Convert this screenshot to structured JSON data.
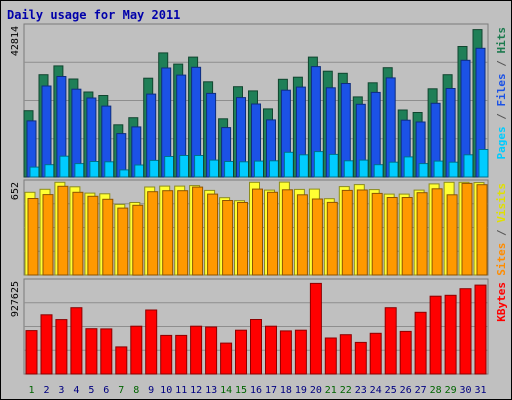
{
  "chart_data": {
    "type": "bar",
    "title": "Daily usage for May 2011",
    "categories": [
      "1",
      "2",
      "3",
      "4",
      "5",
      "6",
      "7",
      "8",
      "9",
      "10",
      "11",
      "12",
      "13",
      "14",
      "15",
      "16",
      "17",
      "18",
      "19",
      "20",
      "21",
      "22",
      "23",
      "24",
      "25",
      "26",
      "27",
      "28",
      "29",
      "30",
      "31"
    ],
    "weekend_days": [
      "1",
      "7",
      "8",
      "14",
      "15",
      "21",
      "22",
      "28",
      "29"
    ],
    "weekend_color": "#006400",
    "weekday_color": "#000080",
    "panels": [
      {
        "name": "hits-files-pages",
        "ylim": [
          0,
          42814
        ],
        "ymax_label": "42814",
        "legend": [
          {
            "text": "Pages",
            "color": "#00ccff"
          },
          {
            "text": " / ",
            "color": "#555555"
          },
          {
            "text": "Files",
            "color": "#1b52e6"
          },
          {
            "text": " / ",
            "color": "#555555"
          },
          {
            "text": "Hits",
            "color": "#1c7a4e"
          }
        ],
        "series": [
          {
            "name": "Hits",
            "color": "#1f7f57",
            "values": [
              18800,
              29000,
              31500,
              27800,
              24100,
              23100,
              14800,
              16800,
              28000,
              35200,
              32000,
              34000,
              27000,
              16500,
              25600,
              24400,
              19300,
              27700,
              28300,
              34000,
              30000,
              29400,
              22700,
              26700,
              31000,
              19000,
              18300,
              25000,
              29000,
              37000,
              41800
            ]
          },
          {
            "name": "Files",
            "color": "#1b52e6",
            "values": [
              15900,
              25800,
              28500,
              24900,
              22400,
              20100,
              12300,
              14200,
              23500,
              30900,
              28900,
              31100,
              23700,
              14000,
              22500,
              20700,
              16200,
              24600,
              25500,
              31300,
              25300,
              26500,
              20600,
              24000,
              28100,
              16100,
              15600,
              20900,
              25100,
              33100,
              36500
            ]
          },
          {
            "name": "Pages",
            "color": "#00ccff",
            "values": [
              2800,
              3500,
              5900,
              3800,
              4400,
              4300,
              2000,
              3400,
              4700,
              5800,
              6100,
              6100,
              4800,
              4400,
              4300,
              4500,
              4600,
              7000,
              6300,
              7200,
              6400,
              4600,
              4800,
              3500,
              4200,
              5700,
              3800,
              4500,
              4200,
              6300,
              7800
            ]
          }
        ]
      },
      {
        "name": "visits-sites",
        "ylim": [
          0,
          652
        ],
        "ymax_label": "652",
        "legend": [
          {
            "text": "Sites",
            "color": "#ff8c00"
          },
          {
            "text": " / ",
            "color": "#555555"
          },
          {
            "text": "Visits",
            "color": "#e0e000"
          }
        ],
        "series": [
          {
            "name": "Visits",
            "color": "#ffff33",
            "values": [
              580,
              601,
              650,
              618,
              574,
              569,
              495,
              508,
              617,
              623,
              623,
              627,
              593,
              542,
              521,
              650,
              595,
              651,
              600,
              602,
              535,
              620,
              634,
              599,
              567,
              567,
              595,
              639,
              650,
              650,
              648
            ]
          },
          {
            "name": "Sites",
            "color": "#ff9900",
            "values": [
              536,
              564,
              622,
              580,
              552,
              531,
              469,
              489,
              584,
              591,
              591,
              616,
              567,
              522,
              508,
              602,
              580,
              597,
              562,
              533,
              509,
              593,
              596,
              572,
              543,
              543,
              577,
              604,
              562,
              642,
              633
            ]
          }
        ]
      },
      {
        "name": "kbytes",
        "ylim": [
          0,
          927625
        ],
        "ymax_label": "927625",
        "legend": [
          {
            "text": "KBytes",
            "color": "#ff0000"
          }
        ],
        "series": [
          {
            "name": "KBytes",
            "color": "#ff0000",
            "values": [
              433000,
              590000,
              543000,
              661000,
              452000,
              450000,
              270000,
              477000,
              638000,
              385000,
              385000,
              477000,
              469000,
              308000,
              437000,
              544000,
              477000,
              430000,
              437000,
              904000,
              359000,
              392000,
              315000,
              406000,
              661000,
              425000,
              615000,
              776000,
              785000,
              851000,
              887000
            ]
          }
        ]
      }
    ]
  }
}
